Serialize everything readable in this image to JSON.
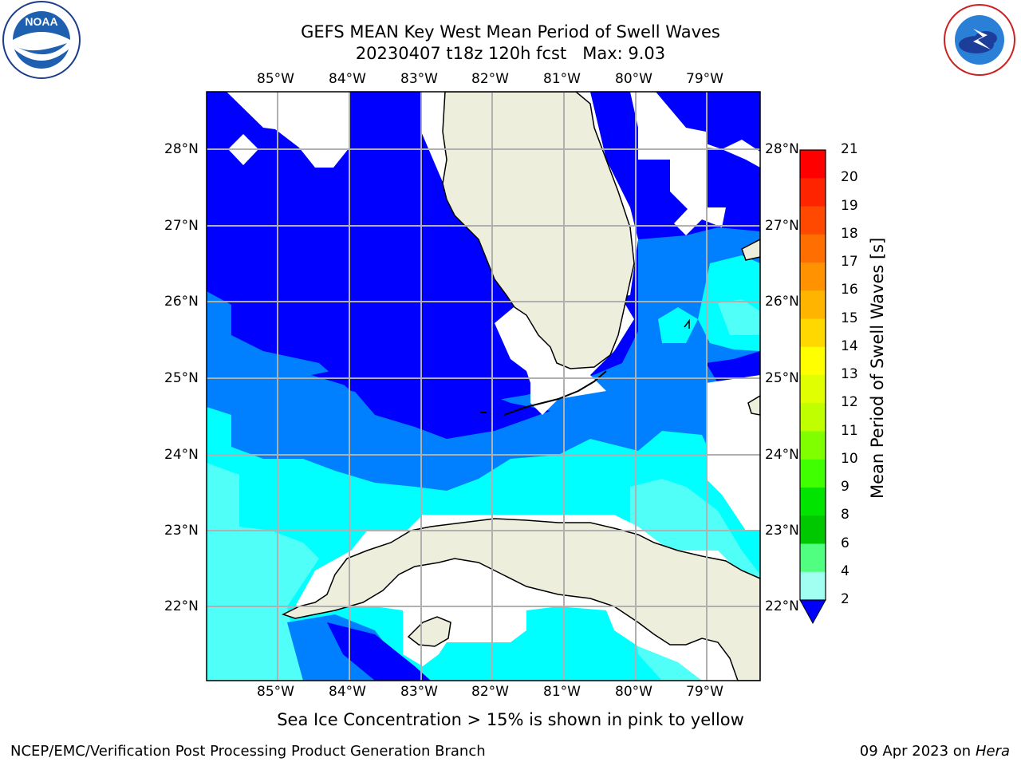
{
  "title": {
    "line1": "GEFS MEAN Key West Mean Period of Swell Waves",
    "line2": "20230407 t18z 120h fcst   Max: 9.03"
  },
  "logos": {
    "left": "NOAA",
    "left_ring_text": "NATIONAL OCEANIC AND ATMOSPHERIC ADMINISTRATION · U.S. DEPARTMENT OF COMMERCE",
    "right_ring_text": "NATIONAL WEATHER SERVICE"
  },
  "map": {
    "lon_labels": [
      "85°W",
      "84°W",
      "83°W",
      "82°W",
      "81°W",
      "80°W",
      "79°W"
    ],
    "lat_labels": [
      "28°N",
      "27°N",
      "26°N",
      "25°N",
      "24°N",
      "23°N",
      "22°N"
    ]
  },
  "colorbar": {
    "title": "Mean Period of Swell Waves [s]",
    "labels": [
      "21",
      "20",
      "19",
      "18",
      "17",
      "16",
      "15",
      "14",
      "13",
      "12",
      "11",
      "10",
      "9",
      "8",
      "6",
      "4",
      "2"
    ],
    "colors": [
      "#ff0000",
      "#ff2400",
      "#ff4800",
      "#ff6e00",
      "#ff9200",
      "#ffb400",
      "#ffd800",
      "#ffff00",
      "#e0ff00",
      "#c0ff00",
      "#80ff00",
      "#40ff00",
      "#00e400",
      "#00c800",
      "#50ff80",
      "#a0fff0",
      "#50fff8",
      "#00ffff",
      "#0080ff"
    ],
    "extend_color": "#0000ff"
  },
  "notes": {
    "sea_ice": "Sea Ice Concentration > 15% is shown in pink to yellow"
  },
  "footer": {
    "left": "NCEP/EMC/Verification Post Processing Product Generation Branch",
    "right_date": "09 Apr 2023 on ",
    "right_host": "Hera"
  },
  "palette": {
    "deep_blue": "#0000ff",
    "mid_blue": "#0080ff",
    "cyan": "#00ffff",
    "light_cyan": "#50fff8",
    "land": "#eeeedd",
    "grid": "#b0b0b0"
  }
}
